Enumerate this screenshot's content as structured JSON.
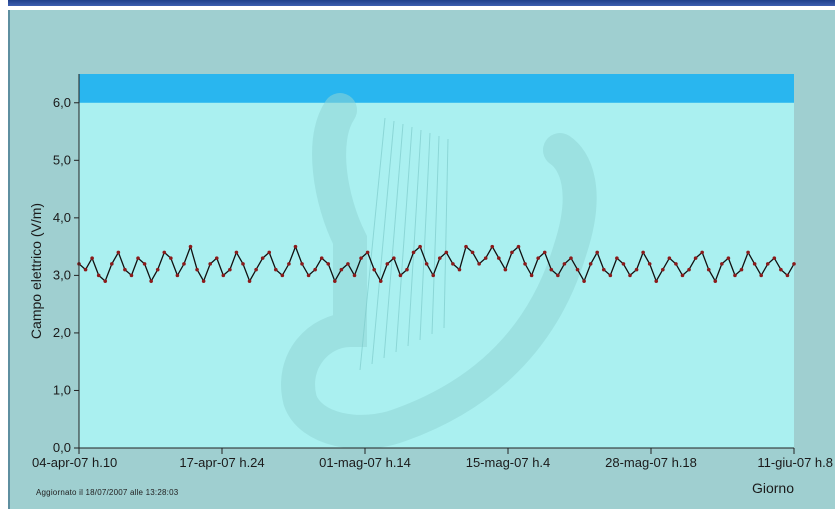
{
  "chart_data": {
    "type": "line",
    "title": "",
    "ylabel": "Campo elettrico (V/m)",
    "xlabel": "Giorno",
    "ylim": [
      0,
      6.5
    ],
    "y_ticks": [
      "0,0",
      "1,0",
      "2,0",
      "3,0",
      "4,0",
      "5,0",
      "6,0"
    ],
    "y_tick_values": [
      0,
      1,
      2,
      3,
      4,
      5,
      6
    ],
    "x_ticks": [
      "04-apr-07 h.10",
      "17-apr-07 h.24",
      "01-mag-07 h.14",
      "15-mag-07 h.4",
      "28-mag-07 h.18",
      "11-giu-07 h.8"
    ],
    "threshold_band": {
      "from": 6.0,
      "to": 6.5,
      "color": "#29b6ef"
    },
    "plot_background": "#aaf0f0",
    "line_color": "#111111",
    "marker_color": "#8b1a1a",
    "grid": false,
    "series": [
      {
        "values": [
          3.2,
          3.1,
          3.3,
          3.0,
          2.9,
          3.2,
          3.4,
          3.1,
          3.0,
          3.3,
          3.2,
          2.9,
          3.1,
          3.4,
          3.3,
          3.0,
          3.2,
          3.5,
          3.1,
          2.9,
          3.2,
          3.3,
          3.0,
          3.1,
          3.4,
          3.2,
          2.9,
          3.1,
          3.3,
          3.4,
          3.1,
          3.0,
          3.2,
          3.5,
          3.2,
          3.0,
          3.1,
          3.3,
          3.2,
          2.9,
          3.1,
          3.2,
          3.0,
          3.3,
          3.4,
          3.1,
          2.9,
          3.2,
          3.3,
          3.0,
          3.1,
          3.4,
          3.5,
          3.2,
          3.0,
          3.3,
          3.4,
          3.2,
          3.1,
          3.5,
          3.4,
          3.2,
          3.3,
          3.5,
          3.3,
          3.1,
          3.4,
          3.5,
          3.2,
          3.0,
          3.3,
          3.4,
          3.1,
          3.0,
          3.2,
          3.3,
          3.1,
          2.9,
          3.2,
          3.4,
          3.1,
          3.0,
          3.3,
          3.2,
          3.0,
          3.1,
          3.4,
          3.2,
          2.9,
          3.1,
          3.3,
          3.2,
          3.0,
          3.1,
          3.3,
          3.4,
          3.1,
          2.9,
          3.2,
          3.3,
          3.0,
          3.1,
          3.4,
          3.2,
          3.0,
          3.2,
          3.3,
          3.1,
          3.0,
          3.2
        ]
      }
    ]
  },
  "footer_text": "Aggiornato il 18/07/2007 alle 13:28:03"
}
